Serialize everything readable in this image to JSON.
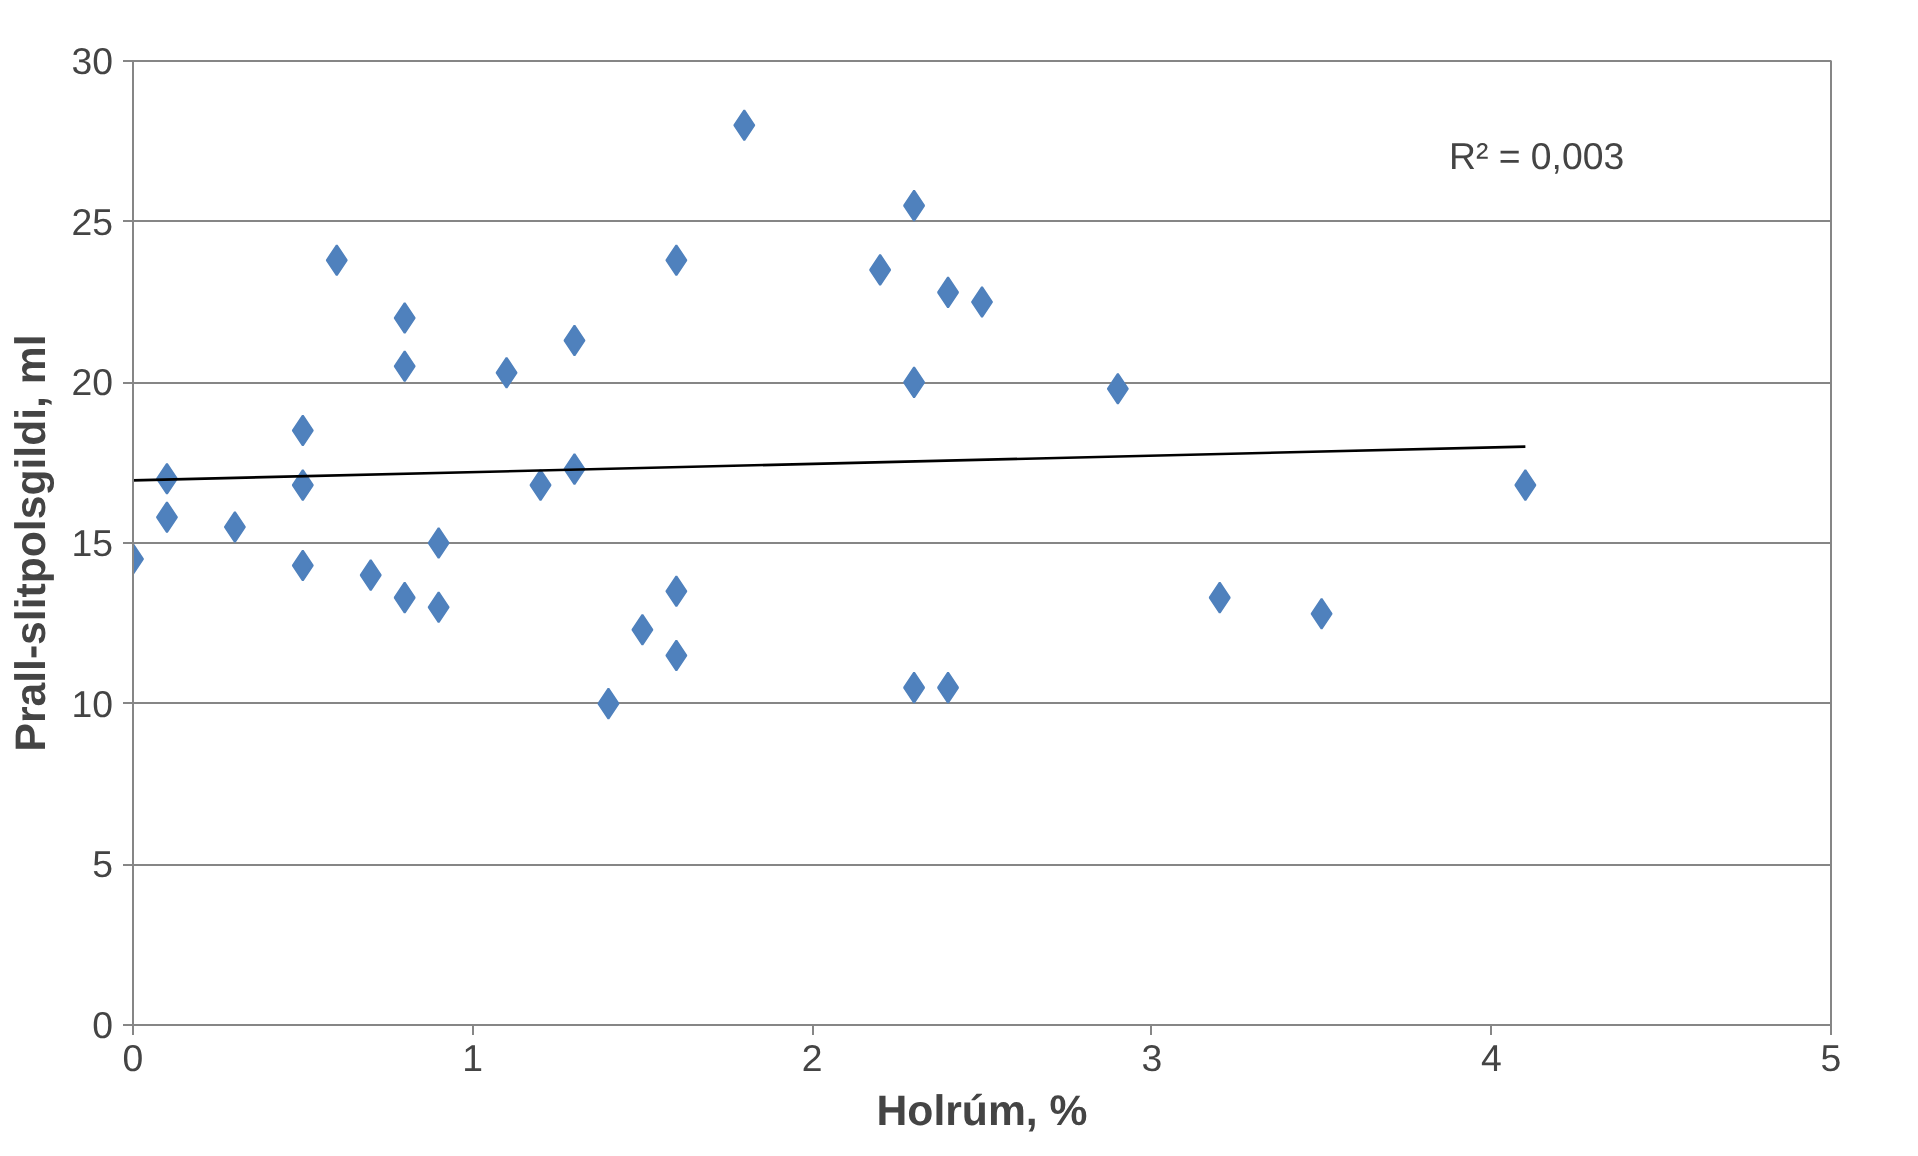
{
  "chart_data": {
    "type": "scatter",
    "xlabel": "Holrúm, %",
    "ylabel": "Prall-slitpolsgildi, ml",
    "xlim": [
      0,
      5
    ],
    "xticks": [
      0,
      1,
      2,
      3,
      4,
      5
    ],
    "ylim": [
      0,
      30
    ],
    "yticks": [
      0,
      5,
      10,
      15,
      20,
      25,
      30
    ],
    "grid": "y",
    "annotations": [
      "R² = 0,003"
    ],
    "series": [
      {
        "marker": "diamond",
        "color": "#4f81bd",
        "x": [
          0,
          0.1,
          0.1,
          0.3,
          0.5,
          0.5,
          0.5,
          0.6,
          0.7,
          0.8,
          0.8,
          0.8,
          0.9,
          0.9,
          1.1,
          1.2,
          1.3,
          1.3,
          1.4,
          1.5,
          1.6,
          1.6,
          1.6,
          1.8,
          2.2,
          2.3,
          2.3,
          2.3,
          2.4,
          2.4,
          2.5,
          2.9,
          3.2,
          3.5,
          4.1
        ],
        "values": [
          14.5,
          17.0,
          15.8,
          15.5,
          18.5,
          16.8,
          14.3,
          23.8,
          14.0,
          22.0,
          20.5,
          13.3,
          15.0,
          13.0,
          20.3,
          16.8,
          21.3,
          17.3,
          10.0,
          12.3,
          23.8,
          13.5,
          11.5,
          28.0,
          23.5,
          25.5,
          20.0,
          10.5,
          22.8,
          10.5,
          22.5,
          19.8,
          13.3,
          12.8,
          16.8
        ]
      },
      {
        "type": "line",
        "marker": "none",
        "color": "#000000",
        "x": [
          0,
          4.1
        ],
        "values": [
          16.95,
          18.0
        ]
      }
    ]
  }
}
